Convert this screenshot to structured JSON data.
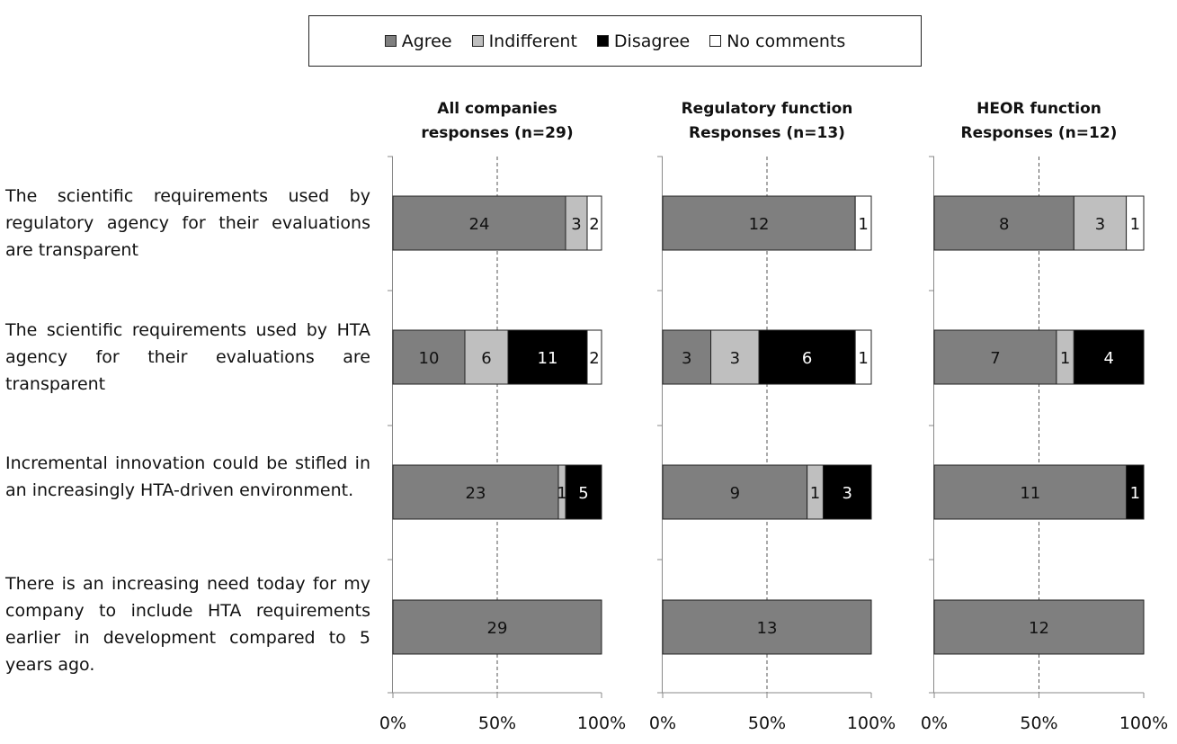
{
  "colors": {
    "Agree": "#7f7f7f",
    "Indifferent": "#bfbfbf",
    "Disagree": "#000000",
    "No comments": "#ffffff"
  },
  "legend": [
    "Agree",
    "Indifferent",
    "Disagree",
    "No comments"
  ],
  "questions": [
    "The scientific requirements used by regulatory agency for their evaluations are transparent",
    "The scientific requirements used by HTA agency for their evaluations are transparent",
    "Incremental innovation could be stifled in an increasingly HTA-driven environment.",
    "There is an increasing need today for my company to include HTA requirements earlier in development compared to 5 years ago."
  ],
  "chart_data": [
    {
      "type": "bar",
      "orientation": "horizontal",
      "stacked": "percent",
      "title_lines": [
        "All companies",
        "responses (n=29)"
      ],
      "xlim": [
        0,
        100
      ],
      "xticks": [
        "0%",
        "50%",
        "100%"
      ],
      "series": [
        {
          "name": "Agree",
          "values": [
            24,
            10,
            23,
            29
          ]
        },
        {
          "name": "Indifferent",
          "values": [
            3,
            6,
            1,
            0
          ]
        },
        {
          "name": "Disagree",
          "values": [
            0,
            11,
            5,
            0
          ]
        },
        {
          "name": "No comments",
          "values": [
            2,
            2,
            0,
            0
          ]
        }
      ]
    },
    {
      "type": "bar",
      "orientation": "horizontal",
      "stacked": "percent",
      "title_lines": [
        "Regulatory function",
        "Responses (n=13)"
      ],
      "xlim": [
        0,
        100
      ],
      "xticks": [
        "0%",
        "50%",
        "100%"
      ],
      "series": [
        {
          "name": "Agree",
          "values": [
            12,
            3,
            9,
            13
          ]
        },
        {
          "name": "Indifferent",
          "values": [
            0,
            3,
            1,
            0
          ]
        },
        {
          "name": "Disagree",
          "values": [
            0,
            6,
            3,
            0
          ]
        },
        {
          "name": "No comments",
          "values": [
            1,
            1,
            0,
            0
          ]
        }
      ]
    },
    {
      "type": "bar",
      "orientation": "horizontal",
      "stacked": "percent",
      "title_lines": [
        "HEOR function",
        "Responses (n=12)"
      ],
      "xlim": [
        0,
        100
      ],
      "xticks": [
        "0%",
        "50%",
        "100%"
      ],
      "series": [
        {
          "name": "Agree",
          "values": [
            8,
            7,
            11,
            12
          ]
        },
        {
          "name": "Indifferent",
          "values": [
            3,
            1,
            0,
            0
          ]
        },
        {
          "name": "Disagree",
          "values": [
            0,
            4,
            1,
            0
          ]
        },
        {
          "name": "No comments",
          "values": [
            1,
            0,
            0,
            0
          ]
        }
      ]
    }
  ]
}
